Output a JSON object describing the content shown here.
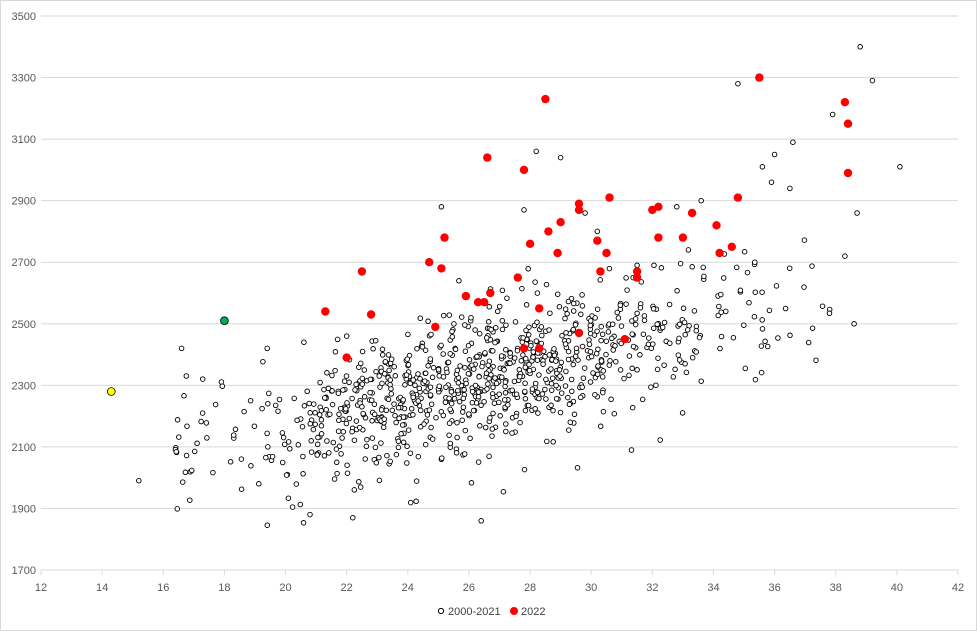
{
  "chart_data": {
    "type": "scatter",
    "title": "",
    "xlabel": "",
    "ylabel": "",
    "xlim": [
      12,
      42
    ],
    "ylim": [
      1700,
      3500
    ],
    "x_ticks": [
      12,
      14,
      16,
      18,
      20,
      22,
      24,
      26,
      28,
      30,
      32,
      34,
      36,
      38,
      40,
      42
    ],
    "y_ticks": [
      1700,
      1900,
      2100,
      2300,
      2500,
      2700,
      2900,
      3100,
      3300,
      3500
    ],
    "grid": "horizontal",
    "legend_placement": "bottom",
    "colors": {
      "series_2000_2021_stroke": "#000000",
      "series_2000_2021_fill": "#ffffff",
      "series_2022_fill": "#ff0000",
      "highlight_yellow": "#ffff00",
      "highlight_green": "#00b050",
      "gridline": "#d9d9d9"
    },
    "series": [
      {
        "name": "2000-2021",
        "marker": "hollow-circle",
        "points_seed": 20002021,
        "points_count": 960,
        "points": [
          [
            15.2,
            1990
          ],
          [
            16.6,
            2420
          ],
          [
            19.4,
            2420
          ],
          [
            20.6,
            2440
          ],
          [
            22.0,
            2460
          ],
          [
            25.1,
            2880
          ],
          [
            27.8,
            2870
          ],
          [
            28.2,
            3060
          ],
          [
            29.0,
            3040
          ],
          [
            29.8,
            2860
          ],
          [
            30.2,
            2800
          ],
          [
            31.5,
            2690
          ],
          [
            32.8,
            2880
          ],
          [
            34.8,
            3280
          ],
          [
            35.6,
            3010
          ],
          [
            35.9,
            2960
          ],
          [
            36.0,
            3050
          ],
          [
            36.6,
            3090
          ],
          [
            37.9,
            3180
          ],
          [
            38.3,
            2720
          ],
          [
            38.6,
            2500
          ],
          [
            38.7,
            2860
          ],
          [
            38.8,
            3400
          ],
          [
            39.2,
            3290
          ],
          [
            40.1,
            3010
          ],
          [
            26.4,
            1860
          ],
          [
            22.2,
            1870
          ],
          [
            20.8,
            1880
          ],
          [
            33.6,
            2900
          ],
          [
            36.5,
            2940
          ]
        ]
      },
      {
        "name": "2022",
        "marker": "filled-circle",
        "points": [
          [
            21.3,
            2540
          ],
          [
            22.0,
            2390
          ],
          [
            22.5,
            2670
          ],
          [
            22.8,
            2530
          ],
          [
            24.7,
            2700
          ],
          [
            24.9,
            2490
          ],
          [
            25.1,
            2680
          ],
          [
            25.2,
            2780
          ],
          [
            25.9,
            2590
          ],
          [
            26.3,
            2570
          ],
          [
            26.5,
            2570
          ],
          [
            26.7,
            2600
          ],
          [
            26.6,
            3040
          ],
          [
            27.6,
            2650
          ],
          [
            27.8,
            3000
          ],
          [
            27.8,
            2420
          ],
          [
            28.0,
            2760
          ],
          [
            28.3,
            2550
          ],
          [
            28.3,
            2420
          ],
          [
            28.5,
            3230
          ],
          [
            28.6,
            2800
          ],
          [
            28.9,
            2730
          ],
          [
            29.0,
            2830
          ],
          [
            29.6,
            2890
          ],
          [
            29.6,
            2870
          ],
          [
            29.6,
            2470
          ],
          [
            30.2,
            2770
          ],
          [
            30.3,
            2670
          ],
          [
            30.5,
            2730
          ],
          [
            30.6,
            2910
          ],
          [
            31.1,
            2450
          ],
          [
            31.5,
            2670
          ],
          [
            31.5,
            2650
          ],
          [
            32.0,
            2870
          ],
          [
            32.2,
            2880
          ],
          [
            32.2,
            2780
          ],
          [
            33.0,
            2780
          ],
          [
            33.3,
            2860
          ],
          [
            34.1,
            2820
          ],
          [
            34.2,
            2730
          ],
          [
            34.6,
            2750
          ],
          [
            34.8,
            2910
          ],
          [
            35.5,
            3300
          ],
          [
            38.3,
            3220
          ],
          [
            38.4,
            3150
          ],
          [
            38.4,
            2990
          ]
        ]
      },
      {
        "name": "",
        "marker": "filled-circle",
        "color_key": "highlight_yellow",
        "points": [
          [
            14.3,
            2280
          ]
        ]
      },
      {
        "name": "",
        "marker": "filled-circle",
        "color_key": "highlight_green",
        "points": [
          [
            18.0,
            2510
          ]
        ]
      }
    ],
    "legend": {
      "entries": [
        {
          "label": "2000-2021",
          "marker": "hollow-circle"
        },
        {
          "label": "2022",
          "marker": "filled-circle"
        }
      ]
    }
  }
}
